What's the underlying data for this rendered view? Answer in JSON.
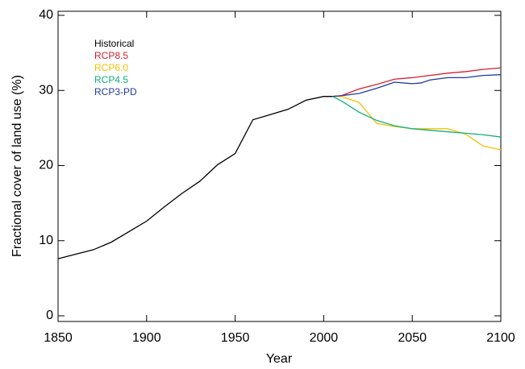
{
  "chart_data": {
    "type": "line",
    "x_label": "Year",
    "y_label": "Fractional cover of land use (%)",
    "xlim": [
      1850,
      2100
    ],
    "xticks": [
      1850,
      1900,
      1950,
      2000,
      2050,
      2100
    ],
    "ylim": [
      0,
      40
    ],
    "yticks": [
      0,
      10,
      20,
      30,
      40
    ],
    "legend": "top-left",
    "series": [
      {
        "name": "Historical",
        "color": "#000000",
        "x": [
          1850,
          1860,
          1870,
          1880,
          1890,
          1900,
          1910,
          1920,
          1930,
          1940,
          1950,
          1960,
          1970,
          1980,
          1990,
          2000,
          2005
        ],
        "values": [
          7.6,
          8.2,
          8.8,
          9.8,
          11.2,
          12.6,
          14.5,
          16.3,
          17.9,
          20.1,
          21.6,
          26.1,
          26.8,
          27.5,
          28.7,
          29.2,
          29.2
        ]
      },
      {
        "name": "RCP8.5",
        "color": "#d42030",
        "x": [
          2005,
          2010,
          2020,
          2030,
          2040,
          2050,
          2060,
          2070,
          2080,
          2090,
          2100
        ],
        "values": [
          29.2,
          29.3,
          30.2,
          30.8,
          31.5,
          31.7,
          32.0,
          32.3,
          32.5,
          32.8,
          33.0
        ]
      },
      {
        "name": "RCP6.0",
        "color": "#f5c000",
        "x": [
          2005,
          2010,
          2020,
          2030,
          2040,
          2050,
          2060,
          2070,
          2080,
          2090,
          2100
        ],
        "values": [
          29.2,
          29.2,
          28.4,
          25.6,
          25.2,
          24.9,
          24.9,
          24.9,
          24.2,
          22.6,
          22.1
        ]
      },
      {
        "name": "RCP4.5",
        "color": "#10b07a",
        "x": [
          2005,
          2010,
          2020,
          2030,
          2040,
          2050,
          2060,
          2070,
          2080,
          2090,
          2100
        ],
        "values": [
          29.2,
          28.6,
          27.1,
          26.0,
          25.3,
          24.9,
          24.7,
          24.5,
          24.3,
          24.1,
          23.8
        ]
      },
      {
        "name": "RCP3-PD",
        "color": "#1f3aa0",
        "x": [
          2005,
          2010,
          2020,
          2030,
          2040,
          2050,
          2055,
          2060,
          2070,
          2080,
          2090,
          2100
        ],
        "values": [
          29.2,
          29.3,
          29.6,
          30.3,
          31.1,
          30.9,
          31.0,
          31.4,
          31.7,
          31.7,
          32.0,
          32.1
        ]
      }
    ]
  }
}
